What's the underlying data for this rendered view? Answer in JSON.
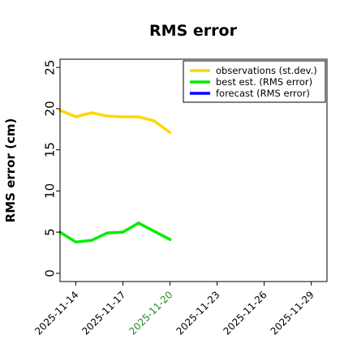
{
  "chart_data": {
    "type": "line",
    "title": "RMS error",
    "xlabel": "",
    "ylabel": "RMS error (cm)",
    "x_ticks": [
      "2025-11-14",
      "2025-11-17",
      "2025-11-20",
      "2025-11-23",
      "2025-11-26",
      "2025-11-29"
    ],
    "highlight_tick": "2025-11-20",
    "highlight_color": "#228b22",
    "ylim": [
      -1,
      26
    ],
    "y_ticks": [
      0,
      5,
      10,
      15,
      20,
      25
    ],
    "xlim": [
      "2025-11-13",
      "2025-11-30"
    ],
    "grid": false,
    "legend_position": "top-right",
    "series": [
      {
        "name": "observations (st.dev.)",
        "color": "#ffd700",
        "x": [
          "2025-11-13",
          "2025-11-14",
          "2025-11-15",
          "2025-11-16",
          "2025-11-17",
          "2025-11-18",
          "2025-11-19",
          "2025-11-20"
        ],
        "y": [
          19.8,
          19.0,
          19.5,
          19.1,
          19.0,
          19.0,
          18.5,
          17.1
        ]
      },
      {
        "name": "best est. (RMS error)",
        "color": "#00ee00",
        "x": [
          "2025-11-13",
          "2025-11-14",
          "2025-11-15",
          "2025-11-16",
          "2025-11-17",
          "2025-11-18",
          "2025-11-19",
          "2025-11-20"
        ],
        "y": [
          5.0,
          3.8,
          4.0,
          4.9,
          5.0,
          6.1,
          5.1,
          4.1
        ]
      },
      {
        "name": "forecast (RMS error)",
        "color": "#0000ff",
        "x": [],
        "y": []
      }
    ]
  }
}
